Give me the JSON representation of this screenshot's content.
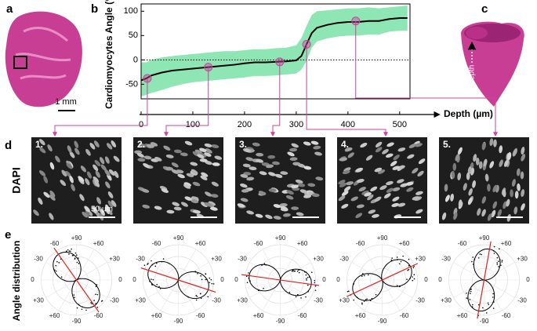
{
  "panel_labels": [
    "a",
    "b",
    "c",
    "d",
    "e"
  ],
  "panel_a": {
    "scale_bar": "1 mm"
  },
  "chart_data": {
    "type": "line",
    "ylabel": "Cardiomyocytes Angle (°)",
    "xlabel": "Depth (µm)",
    "x": [
      0,
      10,
      20,
      40,
      60,
      80,
      100,
      120,
      140,
      160,
      180,
      200,
      220,
      240,
      260,
      280,
      300,
      310,
      320,
      330,
      340,
      360,
      380,
      400,
      420,
      440,
      460,
      480,
      500,
      515
    ],
    "values": [
      -42,
      -38,
      -32,
      -26,
      -22,
      -20,
      -18,
      -16,
      -14,
      -12,
      -10,
      -7,
      -5,
      -5,
      -4,
      -3,
      -1,
      8,
      32,
      55,
      66,
      72,
      76,
      78,
      78,
      80,
      80,
      84,
      86,
      86
    ],
    "band_upper": [
      -5,
      -5,
      0,
      5,
      8,
      10,
      12,
      14,
      16,
      18,
      18,
      20,
      22,
      22,
      24,
      25,
      30,
      45,
      70,
      92,
      100,
      102,
      104,
      106,
      106,
      108,
      106,
      108,
      110,
      112
    ],
    "band_lower": [
      -75,
      -72,
      -68,
      -62,
      -55,
      -50,
      -46,
      -44,
      -42,
      -40,
      -38,
      -36,
      -33,
      -33,
      -32,
      -30,
      -28,
      -20,
      -2,
      25,
      38,
      44,
      48,
      50,
      50,
      52,
      52,
      58,
      60,
      60
    ],
    "color": "#000000",
    "band_color": "#8ee6b4",
    "marker_color": "#c9449b",
    "markers": {
      "x": [
        12,
        130,
        268,
        320,
        415
      ],
      "values": [
        -38,
        -15,
        -4,
        32,
        80
      ]
    },
    "xlim": [
      0,
      520
    ],
    "ylim": [
      -80,
      115
    ],
    "xticks": [
      0,
      100,
      200,
      300,
      400,
      500
    ],
    "yticks": [
      -50,
      0,
      50,
      100
    ]
  },
  "panel_c": {
    "label": "Depth"
  },
  "panel_d": {
    "ylabel": "DAPI",
    "images": [
      "1.",
      "2.",
      "3.",
      "4.",
      "5."
    ],
    "scale_bar": "50 µm"
  },
  "panel_e": {
    "ylabel": "Angle distribution",
    "angle_labels": [
      "+90",
      "+60",
      "+30",
      "0",
      "-30",
      "-60",
      "-90",
      "+60",
      "+30",
      "0",
      "-30",
      "-60"
    ],
    "orientations": [
      -55,
      -18,
      -8,
      25,
      80
    ]
  }
}
